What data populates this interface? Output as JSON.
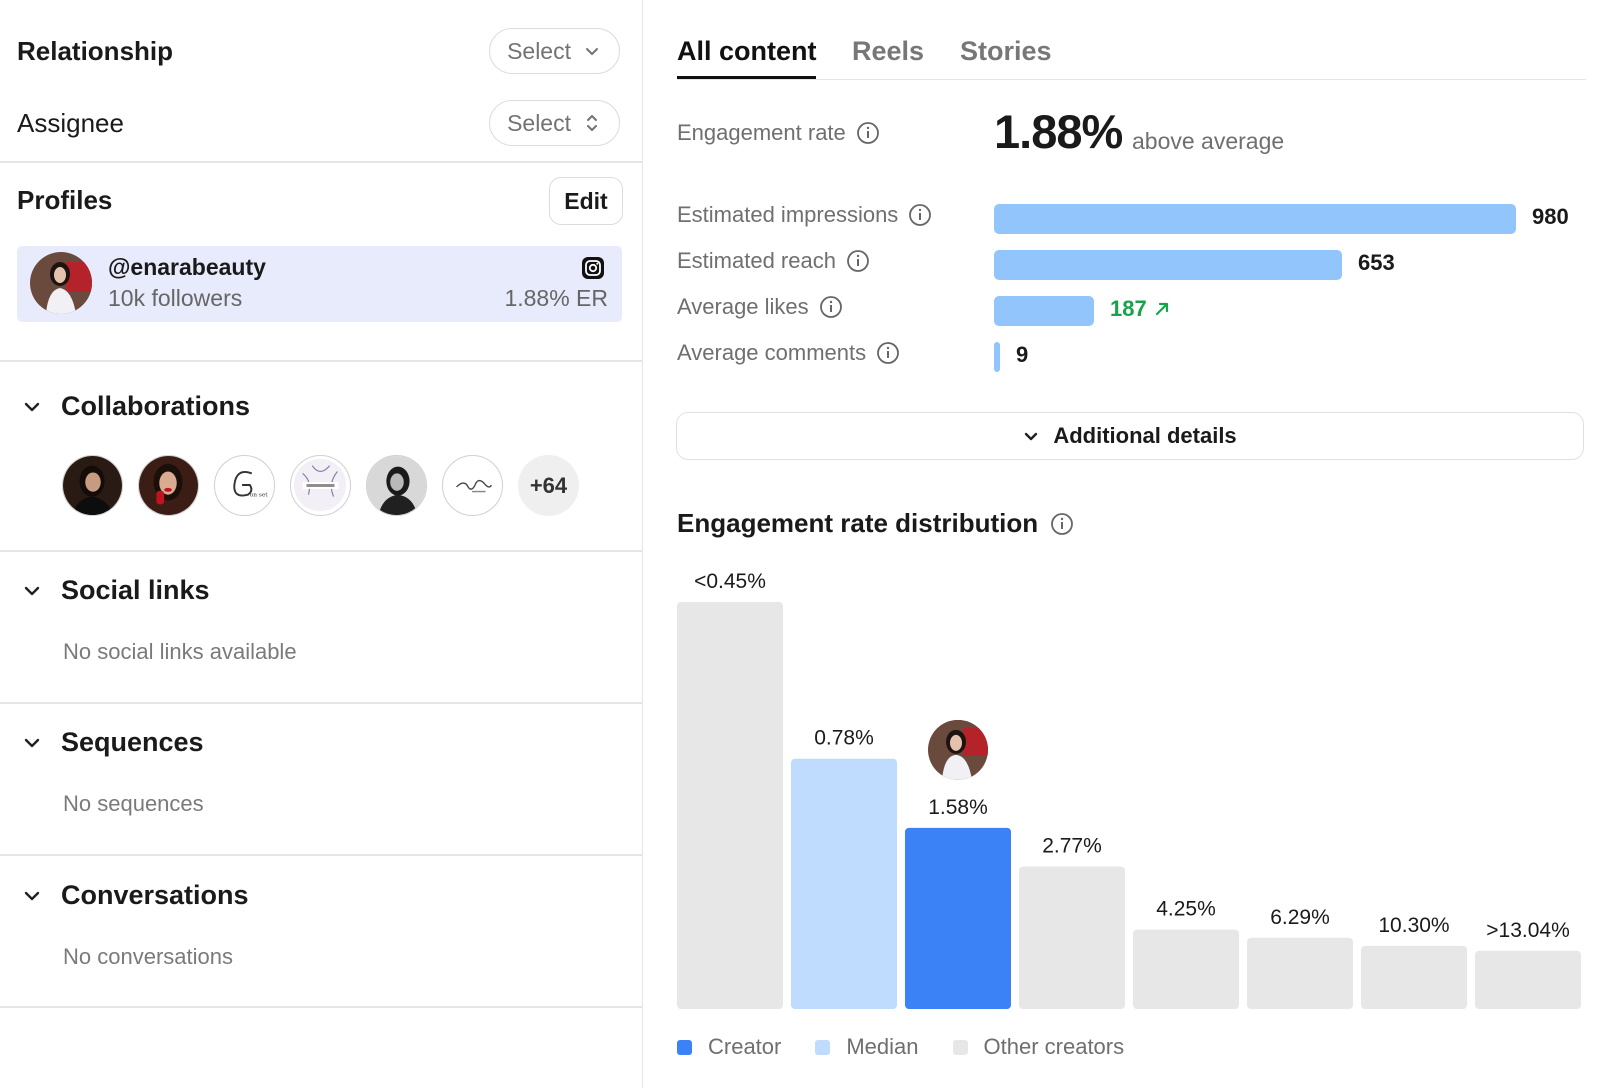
{
  "left": {
    "relationship": {
      "label": "Relationship",
      "select": "Select"
    },
    "assignee": {
      "label": "Assignee",
      "select": "Select"
    },
    "profiles": {
      "title": "Profiles",
      "edit": "Edit",
      "card": {
        "handle": "@enarabeauty",
        "followers": "10k followers",
        "er": "1.88% ER",
        "platform_icon": "instagram-icon"
      }
    },
    "collaborations": {
      "title": "Collaborations",
      "more": "+64"
    },
    "social_links": {
      "title": "Social links",
      "empty": "No social links available"
    },
    "sequences": {
      "title": "Sequences",
      "empty": "No sequences"
    },
    "conversations": {
      "title": "Conversations",
      "empty": "No conversations"
    }
  },
  "right": {
    "tabs": [
      {
        "label": "All content",
        "active": true
      },
      {
        "label": "Reels",
        "active": false
      },
      {
        "label": "Stories",
        "active": false
      }
    ],
    "engagement": {
      "label": "Engagement rate",
      "value": "1.88%",
      "note": "above average"
    },
    "metrics": [
      {
        "label": "Estimated impressions",
        "value": 980,
        "display": "980"
      },
      {
        "label": "Estimated reach",
        "value": 653,
        "display": "653"
      },
      {
        "label": "Average likes",
        "value": 187,
        "display": "187",
        "trend": "up"
      },
      {
        "label": "Average comments",
        "value": 9,
        "display": "9"
      }
    ],
    "details_button": "Additional details",
    "distribution_title": "Engagement rate distribution",
    "legend": [
      {
        "label": "Creator",
        "color": "#3b82f6"
      },
      {
        "label": "Median",
        "color": "#bfdbfe"
      },
      {
        "label": "Other creators",
        "color": "#e7e7e8"
      }
    ]
  },
  "chart_data": {
    "type": "bar",
    "title": "Engagement rate distribution",
    "categories": [
      "<0.45%",
      "0.78%",
      "1.58%",
      "2.77%",
      "4.25%",
      "6.29%",
      "10.30%",
      ">13.04%"
    ],
    "values": [
      100,
      61.5,
      44.5,
      35,
      19.5,
      17.5,
      15.5,
      14.3
    ],
    "roles": [
      "other",
      "median",
      "creator",
      "other",
      "other",
      "other",
      "other",
      "other"
    ],
    "colors": {
      "creator": "#3b82f6",
      "median": "#bfdbfe",
      "other": "#e7e7e8"
    },
    "ylim": [
      0,
      100
    ],
    "legend": "bottom-left"
  }
}
